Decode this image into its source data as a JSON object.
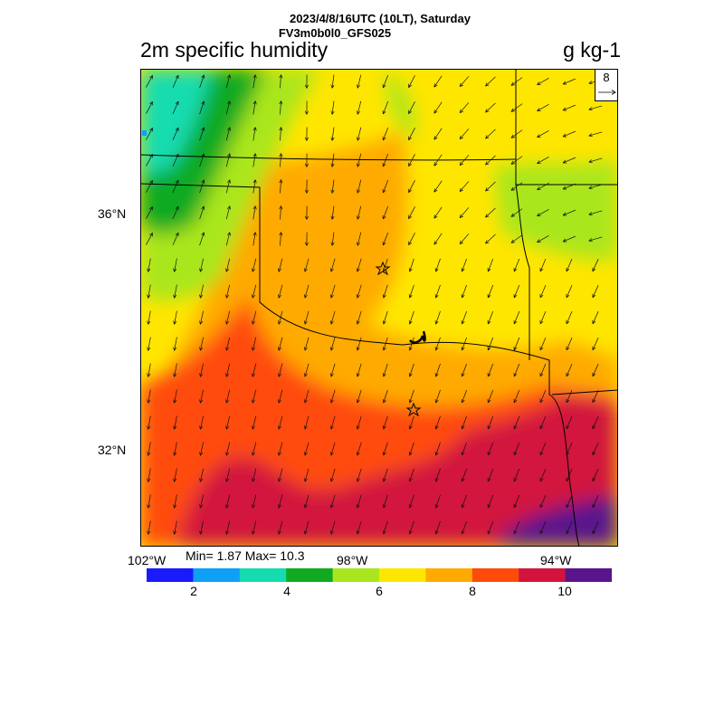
{
  "header": {
    "datetime": "2023/4/8/16UTC (10LT), Saturday",
    "model": "FV3m0b0l0_GFS025",
    "title": "2m specific humidity",
    "units": "g kg-1"
  },
  "axes": {
    "lat_labels": [
      "36°N",
      "32°N"
    ],
    "lon_labels": [
      "102°W",
      "98°W",
      "94°W"
    ]
  },
  "stats": {
    "text": "Min= 1.87 Max= 10.3"
  },
  "reference_vector": {
    "value": "8",
    "icon": "arrow-right-icon"
  },
  "colorbar": {
    "colors": [
      "#1a1aff",
      "#0ea0f6",
      "#14dcb0",
      "#10aa20",
      "#aae61e",
      "#ffe600",
      "#ffaa00",
      "#ff4b0a",
      "#d2143c",
      "#5a148c"
    ],
    "labels": [
      "2",
      "4",
      "6",
      "8",
      "10"
    ]
  },
  "map_features": {
    "markers": [
      "star-icon",
      "star-icon"
    ],
    "wind_field": "arrow-icon"
  }
}
